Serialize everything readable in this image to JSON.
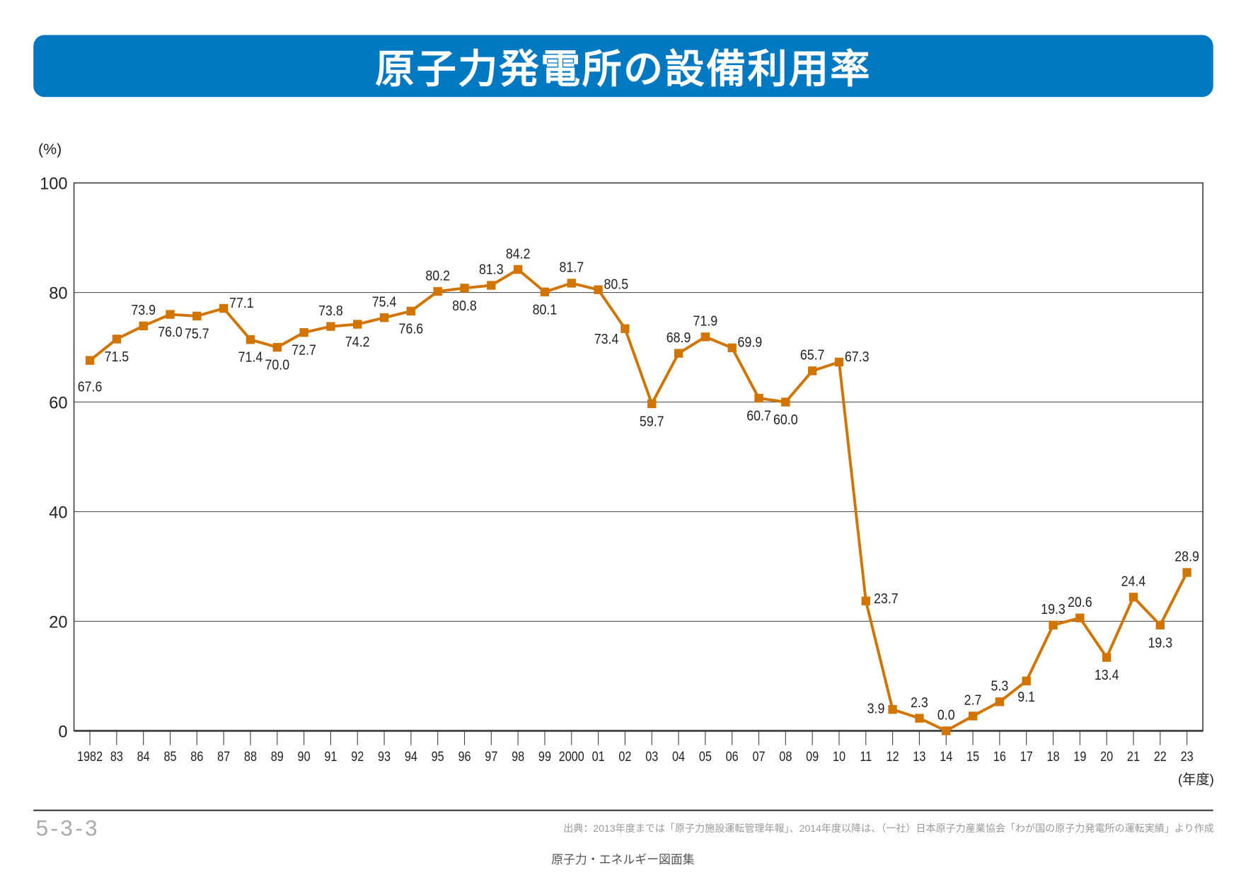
{
  "header": {
    "title": "原子力発電所の設備利用率",
    "color": "#0079c2"
  },
  "chart_data": {
    "type": "line",
    "title": "原子力発電所の設備利用率",
    "ylabel": "(%)",
    "xlabel": "(年度)",
    "ylim": [
      0,
      100
    ],
    "yticks": [
      0,
      20,
      40,
      60,
      80,
      100
    ],
    "grid": true,
    "line_color": "#d17500",
    "categories": [
      "1982",
      "83",
      "84",
      "85",
      "86",
      "87",
      "88",
      "89",
      "90",
      "91",
      "92",
      "93",
      "94",
      "95",
      "96",
      "97",
      "98",
      "99",
      "2000",
      "01",
      "02",
      "03",
      "04",
      "05",
      "06",
      "07",
      "08",
      "09",
      "10",
      "11",
      "12",
      "13",
      "14",
      "15",
      "16",
      "17",
      "18",
      "19",
      "20",
      "21",
      "22",
      "23"
    ],
    "values": [
      67.6,
      71.5,
      73.9,
      76.0,
      75.7,
      77.1,
      71.4,
      70.0,
      72.7,
      73.8,
      74.2,
      75.4,
      76.6,
      80.2,
      80.8,
      81.3,
      84.2,
      80.1,
      81.7,
      80.5,
      73.4,
      59.7,
      68.9,
      71.9,
      69.9,
      60.7,
      60.0,
      65.7,
      67.3,
      23.7,
      3.9,
      2.3,
      0.0,
      2.7,
      5.3,
      9.1,
      19.3,
      20.6,
      13.4,
      24.4,
      19.3,
      28.9
    ]
  },
  "footer": {
    "figure_number": "5-3-3",
    "source": "出典：2013年度までは「原子力施設運転管理年報」、2014年度以降は、（一社）日本原子力産業協会「わが国の原子力発電所の運転実績」より作成",
    "book_title": "原子力・エネルギー図面集"
  }
}
